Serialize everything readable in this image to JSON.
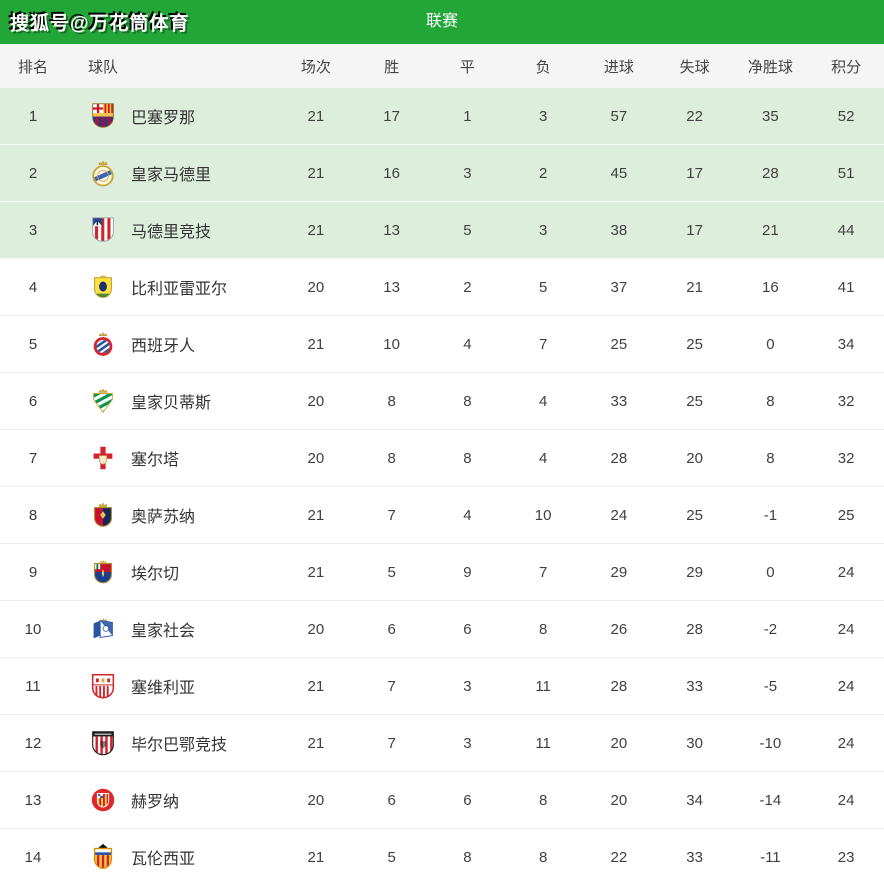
{
  "watermark": "搜狐号@万花筒体育",
  "header": {
    "title": "联赛"
  },
  "colors": {
    "topbar_green": "#22a637",
    "qualified_row_green": "#ddeedd",
    "header_row_gray": "#f5f5f5"
  },
  "table": {
    "columns": [
      "排名",
      "球队",
      "场次",
      "胜",
      "平",
      "负",
      "进球",
      "失球",
      "净胜球",
      "积分"
    ],
    "rows": [
      {
        "rank": "1",
        "team": "巴塞罗那",
        "icon": "barcelona-crest",
        "played": "21",
        "win": "17",
        "draw": "1",
        "loss": "3",
        "goals_for": "57",
        "goals_against": "22",
        "goal_diff": "35",
        "points": "52",
        "qualified": true
      },
      {
        "rank": "2",
        "team": "皇家马德里",
        "icon": "real-madrid-crest",
        "played": "21",
        "win": "16",
        "draw": "3",
        "loss": "2",
        "goals_for": "45",
        "goals_against": "17",
        "goal_diff": "28",
        "points": "51",
        "qualified": true
      },
      {
        "rank": "3",
        "team": "马德里竞技",
        "icon": "atletico-madrid-crest",
        "played": "21",
        "win": "13",
        "draw": "5",
        "loss": "3",
        "goals_for": "38",
        "goals_against": "17",
        "goal_diff": "21",
        "points": "44",
        "qualified": true
      },
      {
        "rank": "4",
        "team": "比利亚雷亚尔",
        "icon": "villarreal-crest",
        "played": "20",
        "win": "13",
        "draw": "2",
        "loss": "5",
        "goals_for": "37",
        "goals_against": "21",
        "goal_diff": "16",
        "points": "41",
        "qualified": false
      },
      {
        "rank": "5",
        "team": "西班牙人",
        "icon": "espanyol-crest",
        "played": "21",
        "win": "10",
        "draw": "4",
        "loss": "7",
        "goals_for": "25",
        "goals_against": "25",
        "goal_diff": "0",
        "points": "34",
        "qualified": false
      },
      {
        "rank": "6",
        "team": "皇家贝蒂斯",
        "icon": "real-betis-crest",
        "played": "20",
        "win": "8",
        "draw": "8",
        "loss": "4",
        "goals_for": "33",
        "goals_against": "25",
        "goal_diff": "8",
        "points": "32",
        "qualified": false
      },
      {
        "rank": "7",
        "team": "塞尔塔",
        "icon": "celta-vigo-crest",
        "played": "20",
        "win": "8",
        "draw": "8",
        "loss": "4",
        "goals_for": "28",
        "goals_against": "20",
        "goal_diff": "8",
        "points": "32",
        "qualified": false
      },
      {
        "rank": "8",
        "team": "奥萨苏纳",
        "icon": "osasuna-crest",
        "played": "21",
        "win": "7",
        "draw": "4",
        "loss": "10",
        "goals_for": "24",
        "goals_against": "25",
        "goal_diff": "-1",
        "points": "25",
        "qualified": false
      },
      {
        "rank": "9",
        "team": "埃尔切",
        "icon": "elche-crest",
        "played": "21",
        "win": "5",
        "draw": "9",
        "loss": "7",
        "goals_for": "29",
        "goals_against": "29",
        "goal_diff": "0",
        "points": "24",
        "qualified": false
      },
      {
        "rank": "10",
        "team": "皇家社会",
        "icon": "real-sociedad-crest",
        "played": "20",
        "win": "6",
        "draw": "6",
        "loss": "8",
        "goals_for": "26",
        "goals_against": "28",
        "goal_diff": "-2",
        "points": "24",
        "qualified": false
      },
      {
        "rank": "11",
        "team": "塞维利亚",
        "icon": "sevilla-crest",
        "played": "21",
        "win": "7",
        "draw": "3",
        "loss": "11",
        "goals_for": "28",
        "goals_against": "33",
        "goal_diff": "-5",
        "points": "24",
        "qualified": false
      },
      {
        "rank": "12",
        "team": "毕尔巴鄂竞技",
        "icon": "athletic-bilbao-crest",
        "played": "21",
        "win": "7",
        "draw": "3",
        "loss": "11",
        "goals_for": "20",
        "goals_against": "30",
        "goal_diff": "-10",
        "points": "24",
        "qualified": false
      },
      {
        "rank": "13",
        "team": "赫罗纳",
        "icon": "girona-crest",
        "played": "20",
        "win": "6",
        "draw": "6",
        "loss": "8",
        "goals_for": "20",
        "goals_against": "34",
        "goal_diff": "-14",
        "points": "24",
        "qualified": false
      },
      {
        "rank": "14",
        "team": "瓦伦西亚",
        "icon": "valencia-crest",
        "played": "21",
        "win": "5",
        "draw": "8",
        "loss": "8",
        "goals_for": "22",
        "goals_against": "33",
        "goal_diff": "-11",
        "points": "23",
        "qualified": false
      }
    ]
  }
}
